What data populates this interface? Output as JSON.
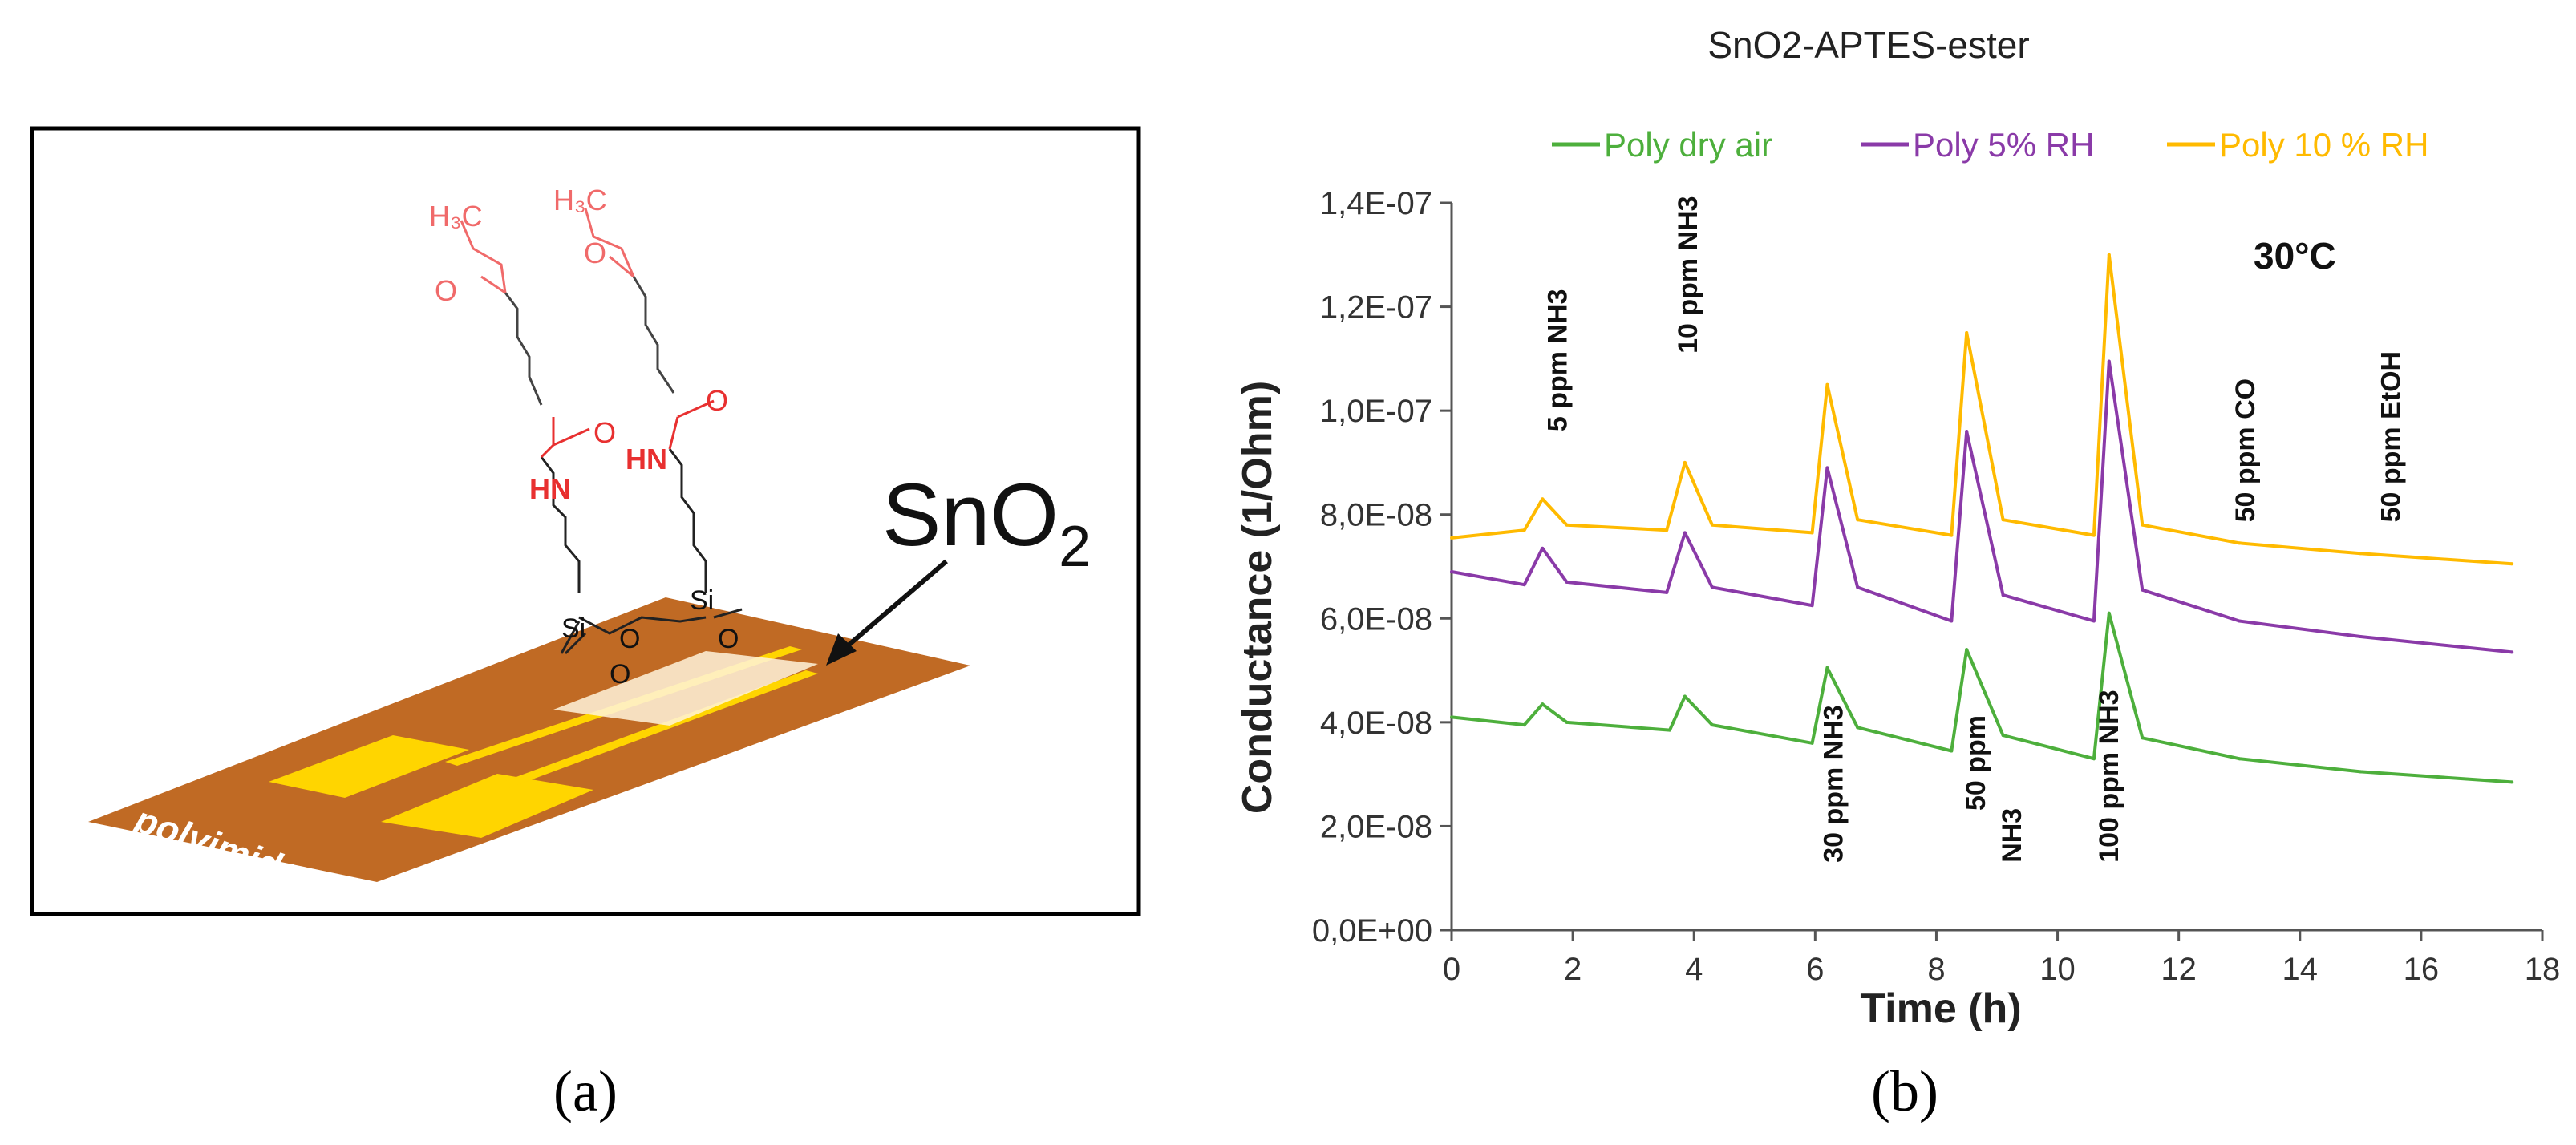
{
  "panel_a": {
    "label": "(a)",
    "substrate_label": "polyimide",
    "sno2_text": "SnO",
    "sno2_sub": "2",
    "molecule": {
      "methyl_1": "H₃C",
      "methyl_2": "H₃C",
      "o_atom": "O",
      "hn": "HN",
      "si": "Si"
    },
    "colors": {
      "polyimide": "#c06a24",
      "electrode": "#ffd500",
      "ester_group": "#f06a6a",
      "amide": "#e83030"
    }
  },
  "panel_b": {
    "label": "(b)"
  },
  "chart_data": {
    "type": "line",
    "title": "SnO2-APTES-ester",
    "xlabel": "Time (h)",
    "ylabel": "Conductance (1/Ohm)",
    "xlim": [
      0,
      18
    ],
    "ylim": [
      0,
      1.4e-07
    ],
    "x_ticks": [
      0,
      2,
      4,
      6,
      8,
      10,
      12,
      14,
      16,
      18
    ],
    "y_ticks": [
      0,
      2e-08,
      4e-08,
      6e-08,
      8e-08,
      1e-07,
      1.2e-07,
      1.4e-07
    ],
    "y_tick_labels": [
      "0,0E+00",
      "2,0E-08",
      "4,0E-08",
      "6,0E-08",
      "8,0E-08",
      "1,0E-07",
      "1,2E-07",
      "1,4E-07"
    ],
    "temperature_label": "30°C",
    "series": [
      {
        "name": "Poly dry air",
        "color": "#4daf3c",
        "x": [
          0,
          1.2,
          1.5,
          1.9,
          3.6,
          3.85,
          4.3,
          5.95,
          6.2,
          6.7,
          8.25,
          8.5,
          9.1,
          10.6,
          10.85,
          11.4,
          13,
          15,
          17.5
        ],
        "y": [
          4.1e-08,
          3.95e-08,
          4.35e-08,
          4e-08,
          3.85e-08,
          4.5e-08,
          3.95e-08,
          3.6e-08,
          5.05e-08,
          3.9e-08,
          3.45e-08,
          5.4e-08,
          3.75e-08,
          3.3e-08,
          6.1e-08,
          3.7e-08,
          3.3e-08,
          3.05e-08,
          2.85e-08
        ]
      },
      {
        "name": "Poly 5% RH",
        "color": "#8a3aa8",
        "x": [
          0,
          1.2,
          1.5,
          1.9,
          3.55,
          3.85,
          4.3,
          5.95,
          6.2,
          6.7,
          8.25,
          8.5,
          9.1,
          10.6,
          10.85,
          11.4,
          13,
          15,
          17.5
        ],
        "y": [
          6.9e-08,
          6.65e-08,
          7.35e-08,
          6.7e-08,
          6.5e-08,
          7.65e-08,
          6.6e-08,
          6.25e-08,
          8.9e-08,
          6.6e-08,
          5.95e-08,
          9.6e-08,
          6.45e-08,
          5.95e-08,
          1.095e-07,
          6.55e-08,
          5.95e-08,
          5.65e-08,
          5.35e-08
        ]
      },
      {
        "name": "Poly 10 % RH",
        "color": "#ffba00",
        "x": [
          0,
          1.2,
          1.5,
          1.9,
          3.55,
          3.85,
          4.3,
          5.95,
          6.2,
          6.7,
          8.25,
          8.5,
          9.1,
          10.6,
          10.85,
          11.4,
          13,
          15,
          17.5
        ],
        "y": [
          7.55e-08,
          7.7e-08,
          8.3e-08,
          7.8e-08,
          7.7e-08,
          9e-08,
          7.8e-08,
          7.65e-08,
          1.05e-07,
          7.9e-08,
          7.6e-08,
          1.15e-07,
          7.9e-08,
          7.6e-08,
          1.3e-07,
          7.8e-08,
          7.45e-08,
          7.25e-08,
          7.05e-08
        ]
      }
    ],
    "annotations": [
      {
        "text": "5 ppm NH3",
        "x": 1.9,
        "y": 9.6e-08,
        "rotate": -90
      },
      {
        "text": "10 ppm NH3",
        "x": 4.05,
        "y": 1.11e-07,
        "rotate": -90
      },
      {
        "text": "30 ppm NH3",
        "x": 6.45,
        "y": 1.3e-08,
        "rotate": -90
      },
      {
        "text": "50 ppm",
        "x": 8.8,
        "y": 2.3e-08,
        "rotate": -90
      },
      {
        "text": "NH3",
        "x": 9.4,
        "y": 1.3e-08,
        "rotate": -90
      },
      {
        "text": "100 ppm NH3",
        "x": 11.0,
        "y": 1.3e-08,
        "rotate": -90
      },
      {
        "text": "50 ppm CO",
        "x": 13.25,
        "y": 7.85e-08,
        "rotate": -90
      },
      {
        "text": "50 ppm EtOH",
        "x": 15.65,
        "y": 7.85e-08,
        "rotate": -90
      }
    ],
    "legend_position": "top"
  }
}
